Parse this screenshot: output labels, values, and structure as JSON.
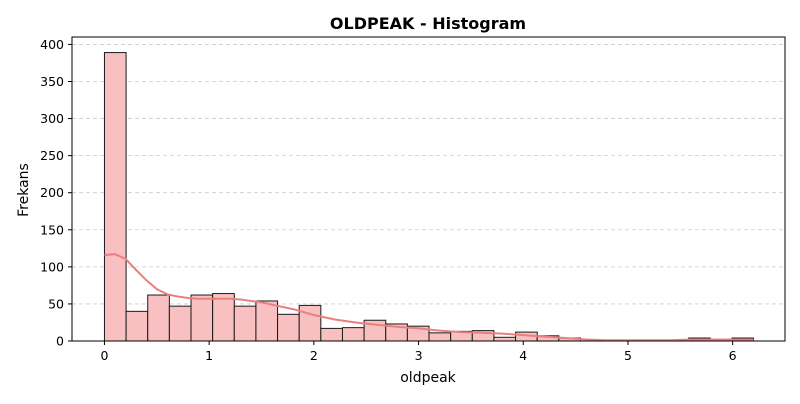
{
  "chart_data": {
    "type": "bar",
    "title": "OLDPEAK - Histogram",
    "xlabel": "oldpeak",
    "ylabel": "Frekans",
    "xlim": [
      -0.31,
      6.5
    ],
    "ylim": [
      0,
      410
    ],
    "xticks": [
      0,
      1,
      2,
      3,
      4,
      5,
      6
    ],
    "yticks": [
      0,
      50,
      100,
      150,
      200,
      250,
      300,
      350,
      400
    ],
    "grid": "horizontal dashed",
    "bin_edges": [
      0,
      0.2067,
      0.4133,
      0.62,
      0.8267,
      1.0333,
      1.24,
      1.4467,
      1.6533,
      1.86,
      2.0667,
      2.2733,
      2.48,
      2.6867,
      2.8933,
      3.1,
      3.3067,
      3.5133,
      3.72,
      3.9267,
      4.1333,
      4.34,
      4.5467,
      4.7533,
      4.96,
      5.1667,
      5.3733,
      5.58,
      5.7867,
      5.9933,
      6.2
    ],
    "counts": [
      389,
      40,
      62,
      47,
      62,
      64,
      47,
      54,
      36,
      48,
      17,
      18,
      28,
      23,
      20,
      11,
      13,
      14,
      5,
      12,
      7,
      4,
      0,
      0,
      0,
      0,
      0,
      4,
      0,
      4
    ],
    "kde": {
      "x": [
        0,
        0.1,
        0.2,
        0.3,
        0.4,
        0.5,
        0.6,
        0.7,
        0.8,
        0.9,
        1.0,
        1.1,
        1.2,
        1.3,
        1.4,
        1.5,
        1.6,
        1.7,
        1.8,
        1.9,
        2.0,
        2.2,
        2.4,
        2.6,
        2.8,
        3.0,
        3.2,
        3.4,
        3.6,
        3.8,
        4.0,
        4.2,
        4.4,
        4.6,
        4.8,
        5.0,
        5.2,
        5.4,
        5.6,
        5.8,
        6.0,
        6.2
      ],
      "y": [
        116,
        117,
        111,
        96,
        82,
        70,
        63,
        60,
        58,
        57,
        57,
        57,
        57,
        56,
        54,
        52,
        49,
        46,
        43,
        39,
        35,
        29,
        25,
        22,
        19,
        17,
        14,
        12,
        11,
        10,
        8,
        6,
        4,
        2,
        1,
        1,
        1,
        1,
        2,
        2,
        2,
        2
      ]
    }
  }
}
